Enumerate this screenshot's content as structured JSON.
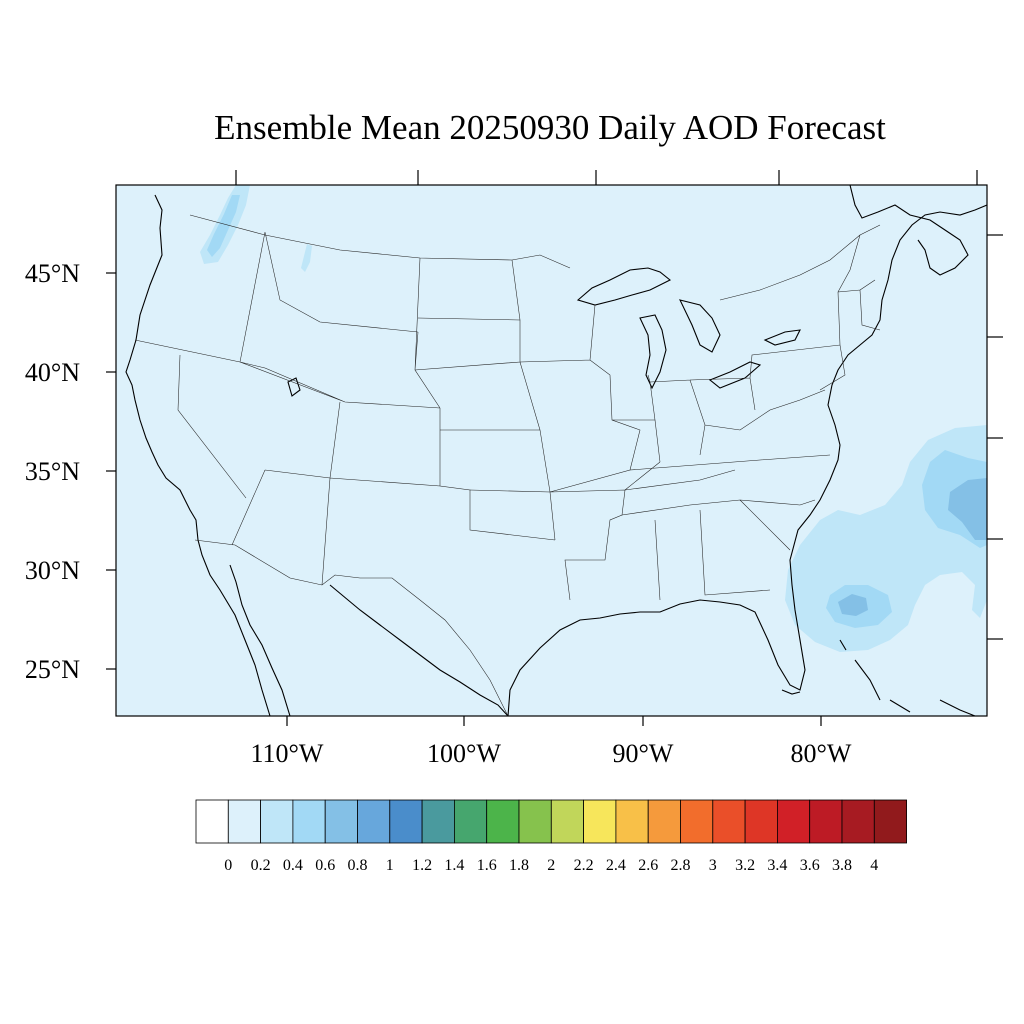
{
  "title": "Ensemble Mean 20250930 Daily AOD Forecast",
  "map": {
    "background_color": "#ddf1fb",
    "lat_labels": [
      "45°N",
      "40°N",
      "35°N",
      "30°N",
      "25°N"
    ],
    "lon_labels": [
      "110°W",
      "100°W",
      "90°W",
      "80°W"
    ]
  },
  "colorbar": {
    "colors": [
      "#ffffff",
      "#ddf1fb",
      "#bfe6f8",
      "#a2d9f5",
      "#84c0e6",
      "#67a7dc",
      "#4a8dcb",
      "#4a9a9e",
      "#46a66e",
      "#4cb44a",
      "#86c24d",
      "#c1d65a",
      "#f7e65b",
      "#f8c048",
      "#f59a3c",
      "#f26d2c",
      "#ea4f29",
      "#de3626",
      "#d12027",
      "#bd1b25",
      "#a71b22",
      "#911a1c"
    ],
    "labels": [
      "0",
      "0.2",
      "0.4",
      "0.6",
      "0.8",
      "1",
      "1.2",
      "1.4",
      "1.6",
      "1.8",
      "2",
      "2.2",
      "2.4",
      "2.6",
      "2.8",
      "3",
      "3.2",
      "3.4",
      "3.6",
      "3.8",
      "4"
    ]
  }
}
